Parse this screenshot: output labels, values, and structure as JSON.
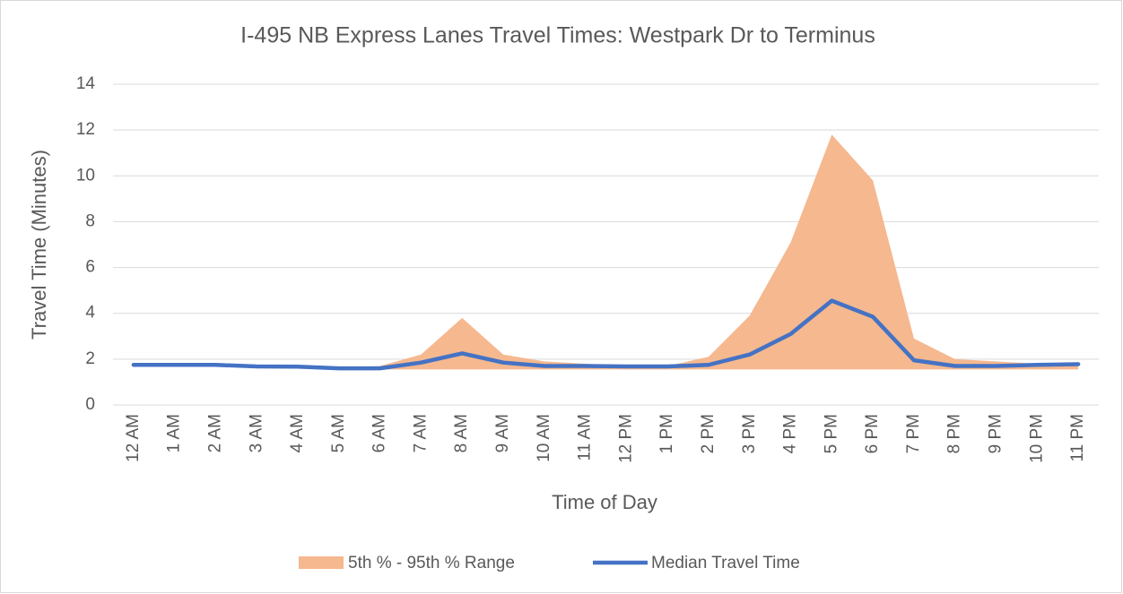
{
  "chart_data": {
    "type": "line",
    "title": "I-495 NB Express Lanes Travel Times: Westpark Dr to Terminus",
    "x_label": "Time of Day",
    "y_label": "Travel Time (Minutes)",
    "categories": [
      "12 AM",
      "1 AM",
      "2 AM",
      "3 AM",
      "4 AM",
      "5 AM",
      "6 AM",
      "7 AM",
      "8 AM",
      "9 AM",
      "10 AM",
      "11 AM",
      "12 PM",
      "1 PM",
      "2 PM",
      "3 PM",
      "4 PM",
      "5 PM",
      "6 PM",
      "7 PM",
      "8 PM",
      "9 PM",
      "10 PM",
      "11 PM"
    ],
    "series": [
      {
        "name": "5th % - 95th % Range",
        "type": "range",
        "color": "#f5b88f",
        "low": [
          1.7,
          1.7,
          1.7,
          1.6,
          1.6,
          1.55,
          1.55,
          1.55,
          1.55,
          1.55,
          1.55,
          1.55,
          1.55,
          1.55,
          1.55,
          1.55,
          1.55,
          1.55,
          1.55,
          1.55,
          1.55,
          1.55,
          1.55,
          1.55
        ],
        "high": [
          1.8,
          1.8,
          1.8,
          1.7,
          1.7,
          1.6,
          1.7,
          2.2,
          3.8,
          2.2,
          1.9,
          1.8,
          1.7,
          1.7,
          2.1,
          3.9,
          7.1,
          11.8,
          9.8,
          2.9,
          2.0,
          1.9,
          1.8,
          1.7
        ]
      },
      {
        "name": "Median Travel Time",
        "type": "line",
        "color": "#4472c4",
        "values": [
          1.75,
          1.75,
          1.75,
          1.68,
          1.67,
          1.6,
          1.6,
          1.85,
          2.25,
          1.85,
          1.7,
          1.7,
          1.68,
          1.68,
          1.75,
          2.2,
          3.1,
          4.55,
          3.85,
          1.95,
          1.7,
          1.7,
          1.75,
          1.78
        ]
      }
    ],
    "ylim": [
      0,
      14
    ],
    "yticks": [
      0,
      2,
      4,
      6,
      8,
      10,
      12,
      14
    ],
    "grid": true,
    "legend": "bottom"
  }
}
